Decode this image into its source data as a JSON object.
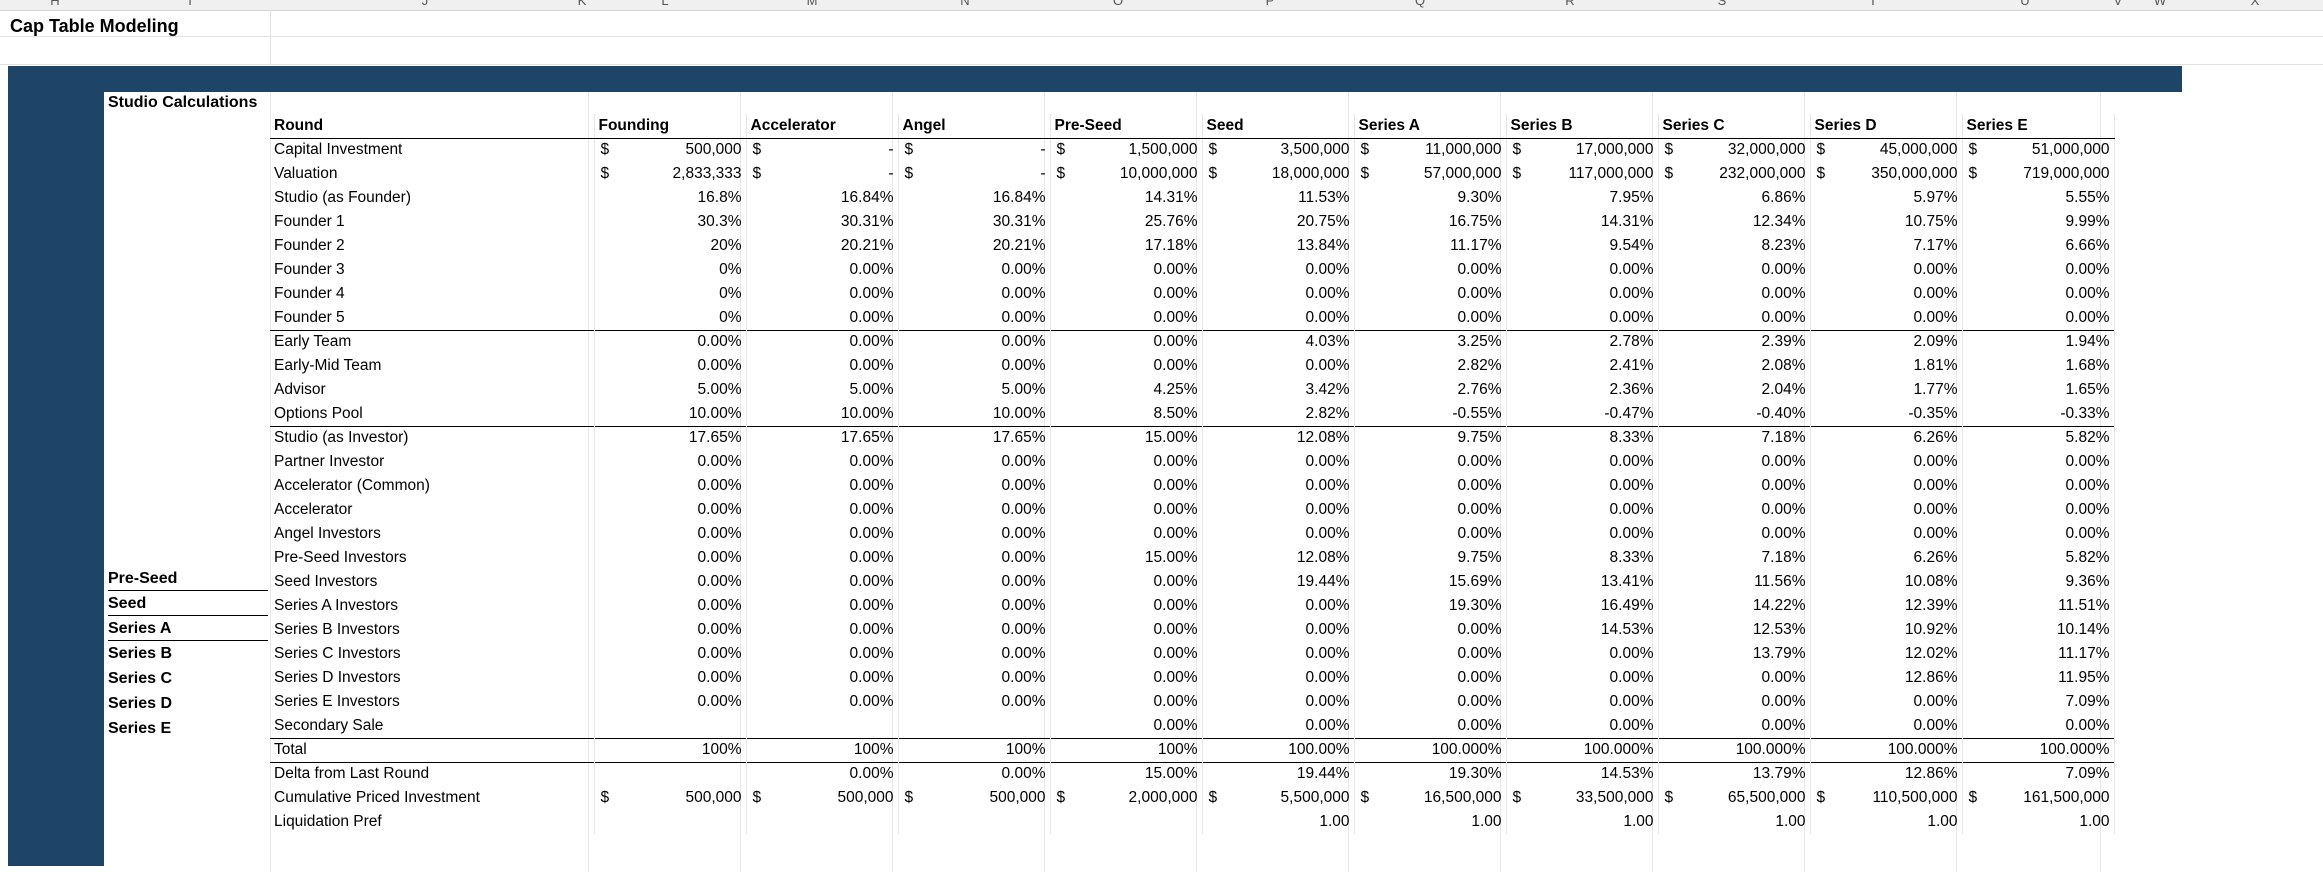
{
  "sheet_title": "Cap Table Modeling",
  "column_letters": [
    "H",
    "I",
    "J",
    "K",
    "L",
    "M",
    "N",
    "O",
    "P",
    "Q",
    "R",
    "S",
    "T",
    "U",
    "V",
    "W",
    "X"
  ],
  "section_title": "Studio Calculations",
  "stage_labels": [
    "Pre-Seed",
    "Seed",
    "Series A",
    "Series B",
    "Series C",
    "Series D",
    "Series E"
  ],
  "header": {
    "label": "Round",
    "rounds": [
      "Founding",
      "Accelerator",
      "Angel",
      "Pre-Seed",
      "Seed",
      "Series A",
      "Series B",
      "Series C",
      "Series D",
      "Series E"
    ]
  },
  "rows": [
    {
      "label": "Capital Investment",
      "currency": true,
      "values": [
        "500,000",
        "-",
        "-",
        "1,500,000",
        "3,500,000",
        "11,000,000",
        "17,000,000",
        "32,000,000",
        "45,000,000",
        "51,000,000"
      ]
    },
    {
      "label": "Valuation",
      "currency": true,
      "values": [
        "2,833,333",
        "-",
        "-",
        "10,000,000",
        "18,000,000",
        "57,000,000",
        "117,000,000",
        "232,000,000",
        "350,000,000",
        "719,000,000"
      ]
    },
    {
      "label": "Studio (as Founder)",
      "values": [
        "16.8%",
        "16.84%",
        "16.84%",
        "14.31%",
        "11.53%",
        "9.30%",
        "7.95%",
        "6.86%",
        "5.97%",
        "5.55%"
      ]
    },
    {
      "label": "Founder 1",
      "values": [
        "30.3%",
        "30.31%",
        "30.31%",
        "25.76%",
        "20.75%",
        "16.75%",
        "14.31%",
        "12.34%",
        "10.75%",
        "9.99%"
      ]
    },
    {
      "label": "Founder 2",
      "values": [
        "20%",
        "20.21%",
        "20.21%",
        "17.18%",
        "13.84%",
        "11.17%",
        "9.54%",
        "8.23%",
        "7.17%",
        "6.66%"
      ]
    },
    {
      "label": "Founder 3",
      "values": [
        "0%",
        "0.00%",
        "0.00%",
        "0.00%",
        "0.00%",
        "0.00%",
        "0.00%",
        "0.00%",
        "0.00%",
        "0.00%"
      ]
    },
    {
      "label": "Founder 4",
      "values": [
        "0%",
        "0.00%",
        "0.00%",
        "0.00%",
        "0.00%",
        "0.00%",
        "0.00%",
        "0.00%",
        "0.00%",
        "0.00%"
      ]
    },
    {
      "label": "Founder 5",
      "values": [
        "0%",
        "0.00%",
        "0.00%",
        "0.00%",
        "0.00%",
        "0.00%",
        "0.00%",
        "0.00%",
        "0.00%",
        "0.00%"
      ]
    },
    {
      "label": "Early Team",
      "sep": true,
      "values": [
        "0.00%",
        "0.00%",
        "0.00%",
        "0.00%",
        "4.03%",
        "3.25%",
        "2.78%",
        "2.39%",
        "2.09%",
        "1.94%"
      ]
    },
    {
      "label": "Early-Mid Team",
      "values": [
        "0.00%",
        "0.00%",
        "0.00%",
        "0.00%",
        "0.00%",
        "2.82%",
        "2.41%",
        "2.08%",
        "1.81%",
        "1.68%"
      ]
    },
    {
      "label": "Advisor",
      "values": [
        "5.00%",
        "5.00%",
        "5.00%",
        "4.25%",
        "3.42%",
        "2.76%",
        "2.36%",
        "2.04%",
        "1.77%",
        "1.65%"
      ]
    },
    {
      "label": "Options Pool",
      "values": [
        "10.00%",
        "10.00%",
        "10.00%",
        "8.50%",
        "2.82%",
        "-0.55%",
        "-0.47%",
        "-0.40%",
        "-0.35%",
        "-0.33%"
      ]
    },
    {
      "label": "Studio (as Investor)",
      "sep": true,
      "values": [
        "17.65%",
        "17.65%",
        "17.65%",
        "15.00%",
        "12.08%",
        "9.75%",
        "8.33%",
        "7.18%",
        "6.26%",
        "5.82%"
      ]
    },
    {
      "label": "Partner Investor",
      "values": [
        "0.00%",
        "0.00%",
        "0.00%",
        "0.00%",
        "0.00%",
        "0.00%",
        "0.00%",
        "0.00%",
        "0.00%",
        "0.00%"
      ]
    },
    {
      "label": "Accelerator (Common)",
      "values": [
        "0.00%",
        "0.00%",
        "0.00%",
        "0.00%",
        "0.00%",
        "0.00%",
        "0.00%",
        "0.00%",
        "0.00%",
        "0.00%"
      ]
    },
    {
      "label": "Accelerator",
      "values": [
        "0.00%",
        "0.00%",
        "0.00%",
        "0.00%",
        "0.00%",
        "0.00%",
        "0.00%",
        "0.00%",
        "0.00%",
        "0.00%"
      ]
    },
    {
      "label": "Angel Investors",
      "values": [
        "0.00%",
        "0.00%",
        "0.00%",
        "0.00%",
        "0.00%",
        "0.00%",
        "0.00%",
        "0.00%",
        "0.00%",
        "0.00%"
      ]
    },
    {
      "label": "Pre-Seed Investors",
      "values": [
        "0.00%",
        "0.00%",
        "0.00%",
        "15.00%",
        "12.08%",
        "9.75%",
        "8.33%",
        "7.18%",
        "6.26%",
        "5.82%"
      ]
    },
    {
      "label": "Seed Investors",
      "values": [
        "0.00%",
        "0.00%",
        "0.00%",
        "0.00%",
        "19.44%",
        "15.69%",
        "13.41%",
        "11.56%",
        "10.08%",
        "9.36%"
      ]
    },
    {
      "label": "Series A Investors",
      "values": [
        "0.00%",
        "0.00%",
        "0.00%",
        "0.00%",
        "0.00%",
        "19.30%",
        "16.49%",
        "14.22%",
        "12.39%",
        "11.51%"
      ]
    },
    {
      "label": "Series B Investors",
      "values": [
        "0.00%",
        "0.00%",
        "0.00%",
        "0.00%",
        "0.00%",
        "0.00%",
        "14.53%",
        "12.53%",
        "10.92%",
        "10.14%"
      ]
    },
    {
      "label": "Series C Investors",
      "values": [
        "0.00%",
        "0.00%",
        "0.00%",
        "0.00%",
        "0.00%",
        "0.00%",
        "0.00%",
        "13.79%",
        "12.02%",
        "11.17%"
      ]
    },
    {
      "label": "Series D Investors",
      "values": [
        "0.00%",
        "0.00%",
        "0.00%",
        "0.00%",
        "0.00%",
        "0.00%",
        "0.00%",
        "0.00%",
        "12.86%",
        "11.95%"
      ]
    },
    {
      "label": "Series E Investors",
      "values": [
        "0.00%",
        "0.00%",
        "0.00%",
        "0.00%",
        "0.00%",
        "0.00%",
        "0.00%",
        "0.00%",
        "0.00%",
        "7.09%"
      ]
    },
    {
      "label": "Secondary Sale",
      "values": [
        "",
        "",
        "",
        "0.00%",
        "0.00%",
        "0.00%",
        "0.00%",
        "0.00%",
        "0.00%",
        "0.00%"
      ]
    },
    {
      "label": "Total",
      "sep": true,
      "values": [
        "100%",
        "100%",
        "100%",
        "100%",
        "100.00%",
        "100.000%",
        "100.000%",
        "100.000%",
        "100.000%",
        "100.000%"
      ]
    },
    {
      "label": "Delta from Last Round",
      "sep": true,
      "values": [
        "",
        "0.00%",
        "0.00%",
        "15.00%",
        "19.44%",
        "19.30%",
        "14.53%",
        "13.79%",
        "12.86%",
        "7.09%"
      ]
    },
    {
      "label": "Cumulative Priced Investment",
      "currency": true,
      "values": [
        "500,000",
        "500,000",
        "500,000",
        "2,000,000",
        "5,500,000",
        "16,500,000",
        "33,500,000",
        "65,500,000",
        "110,500,000",
        "161,500,000"
      ]
    },
    {
      "label": "Liquidation Pref",
      "values": [
        "",
        "",
        "",
        "",
        "1.00",
        "1.00",
        "1.00",
        "1.00",
        "1.00",
        "1.00"
      ]
    }
  ],
  "currency_symbol": "$"
}
